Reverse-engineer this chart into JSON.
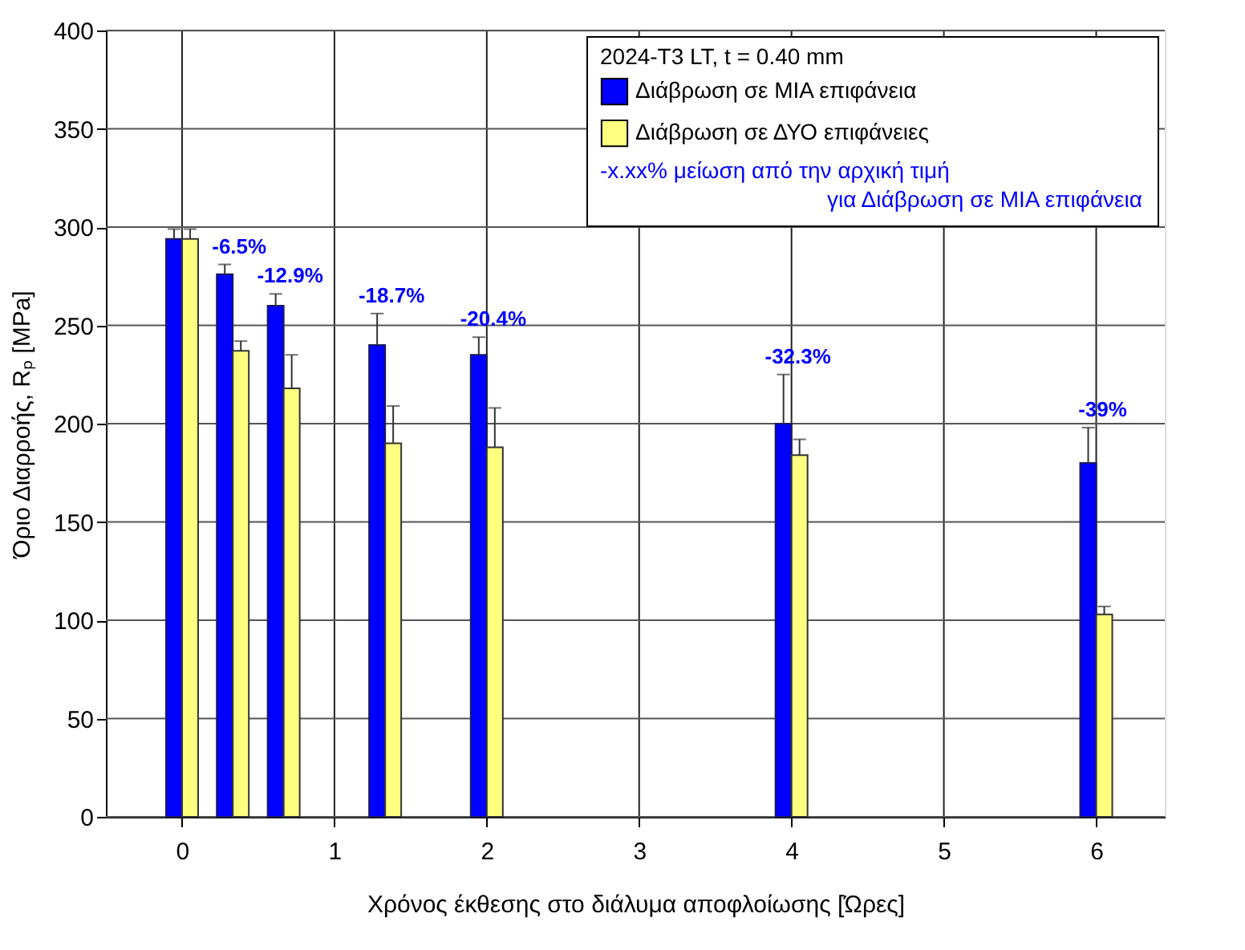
{
  "chart_data": {
    "type": "bar",
    "xlabel": "Χρόνος έκθεσης στο διάλυμα αποφλοίωσης [Ώρες]",
    "ylabel": "Όριο Διαρροής, Rₚ [MPa]",
    "legend_title": "2024-T3 LT, t = 0.40 mm",
    "x": [
      0,
      0.333,
      0.667,
      1.333,
      2,
      4,
      6
    ],
    "series": [
      {
        "name": "Διάβρωση σε ΜΙΑ επιφάνεια",
        "color": "#0000ff",
        "values": [
          294,
          276,
          260,
          240,
          235,
          200,
          180
        ],
        "errors": [
          [
            294,
            299
          ],
          [
            276,
            281
          ],
          [
            260,
            266
          ],
          [
            240,
            256
          ],
          [
            235,
            244
          ],
          [
            200,
            225
          ],
          [
            180,
            198
          ]
        ]
      },
      {
        "name": "Διάβρωση σε ΔΥΟ επιφάνειες",
        "color": "#ffff80",
        "values": [
          294,
          237,
          218,
          190,
          188,
          184,
          103
        ],
        "errors": [
          [
            294,
            299
          ],
          [
            237,
            242
          ],
          [
            218,
            235
          ],
          [
            190,
            209
          ],
          [
            188,
            208
          ],
          [
            184,
            192
          ],
          [
            103,
            107
          ]
        ]
      }
    ],
    "annotations": [
      {
        "text": "-6.5%",
        "x": 0.333,
        "y": 276
      },
      {
        "text": "-12.9%",
        "x": 0.667,
        "y": 260
      },
      {
        "text": "-18.7%",
        "x": 1.333,
        "y": 240
      },
      {
        "text": "-20.4%",
        "x": 2,
        "y": 235
      },
      {
        "text": "-32.3%",
        "x": 4,
        "y": 200
      },
      {
        "text": "-39%",
        "x": 6,
        "y": 180
      },
      "-x.xx% μείωση από την αρχική τιμή",
      "για Διάβρωση σε ΜΙΑ επιφάνεια"
    ],
    "xlim": [
      -0.5,
      6.45
    ],
    "xticks": [
      0,
      1,
      2,
      3,
      4,
      5,
      6
    ],
    "ylim": [
      0,
      400
    ],
    "yticks": [
      0,
      50,
      100,
      150,
      200,
      250,
      300,
      350,
      400
    ],
    "grid": true,
    "legend": "top right"
  }
}
